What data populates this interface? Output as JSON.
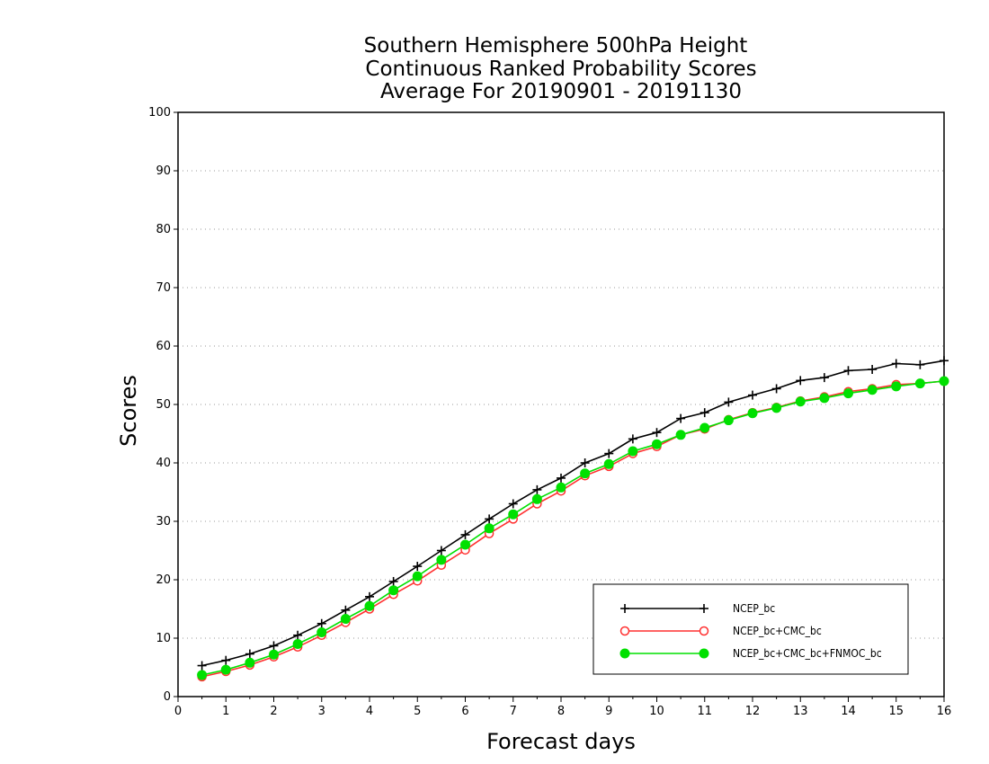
{
  "chart_data": {
    "type": "line",
    "title": [
      "Southern Hemisphere 500hPa Height",
      "Continuous Ranked Probability Scores",
      "Average For 20190901 - 20191130"
    ],
    "xlabel": "Forecast days",
    "ylabel": "Scores",
    "xlim": [
      0,
      16
    ],
    "ylim": [
      0,
      100
    ],
    "xticks": [
      0,
      1,
      2,
      3,
      4,
      5,
      6,
      7,
      8,
      9,
      10,
      11,
      12,
      13,
      14,
      15,
      16
    ],
    "yticks": [
      0,
      10,
      20,
      30,
      40,
      50,
      60,
      70,
      80,
      90,
      100
    ],
    "grid": "horizontal dotted",
    "legend_position": "bottom-right",
    "x": [
      0.5,
      1,
      1.5,
      2,
      2.5,
      3,
      3.5,
      4,
      4.5,
      5,
      5.5,
      6,
      6.5,
      7,
      7.5,
      8,
      8.5,
      9,
      9.5,
      10,
      10.5,
      11,
      11.5,
      12,
      12.5,
      13,
      13.5,
      14,
      14.5,
      15,
      15.5,
      16
    ],
    "series": [
      {
        "name": "NCEP_bc",
        "color": "#000000",
        "marker": "plus",
        "values": [
          5.3,
          6.2,
          7.3,
          8.7,
          10.5,
          12.5,
          14.8,
          17.1,
          19.7,
          22.3,
          25.0,
          27.7,
          30.4,
          33.0,
          35.4,
          37.4,
          40.0,
          41.6,
          44.1,
          45.2,
          47.6,
          48.6,
          50.4,
          51.6,
          52.7,
          54.1,
          54.6,
          55.8,
          56.0,
          57.0,
          56.8,
          57.5
        ]
      },
      {
        "name": "NCEP_bc+CMC_bc",
        "color": "#ff3030",
        "marker": "open-circle",
        "values": [
          3.4,
          4.3,
          5.4,
          6.8,
          8.5,
          10.5,
          12.7,
          15.0,
          17.5,
          19.8,
          22.5,
          25.1,
          27.9,
          30.4,
          33.0,
          35.2,
          37.8,
          39.4,
          41.6,
          42.8,
          44.8,
          45.8,
          47.4,
          48.6,
          49.5,
          50.6,
          51.3,
          52.2,
          52.7,
          53.4,
          53.6,
          54.0
        ]
      },
      {
        "name": "NCEP_bc+CMC_bc+FNMOC_bc",
        "color": "#00e000",
        "marker": "filled-circle",
        "values": [
          3.7,
          4.6,
          5.8,
          7.2,
          9.0,
          11.0,
          13.3,
          15.5,
          18.2,
          20.6,
          23.4,
          26.0,
          28.8,
          31.2,
          33.8,
          35.8,
          38.2,
          39.8,
          42.0,
          43.2,
          44.8,
          46.0,
          47.3,
          48.5,
          49.4,
          50.5,
          51.1,
          51.9,
          52.5,
          53.1,
          53.6,
          54.0
        ]
      }
    ]
  }
}
